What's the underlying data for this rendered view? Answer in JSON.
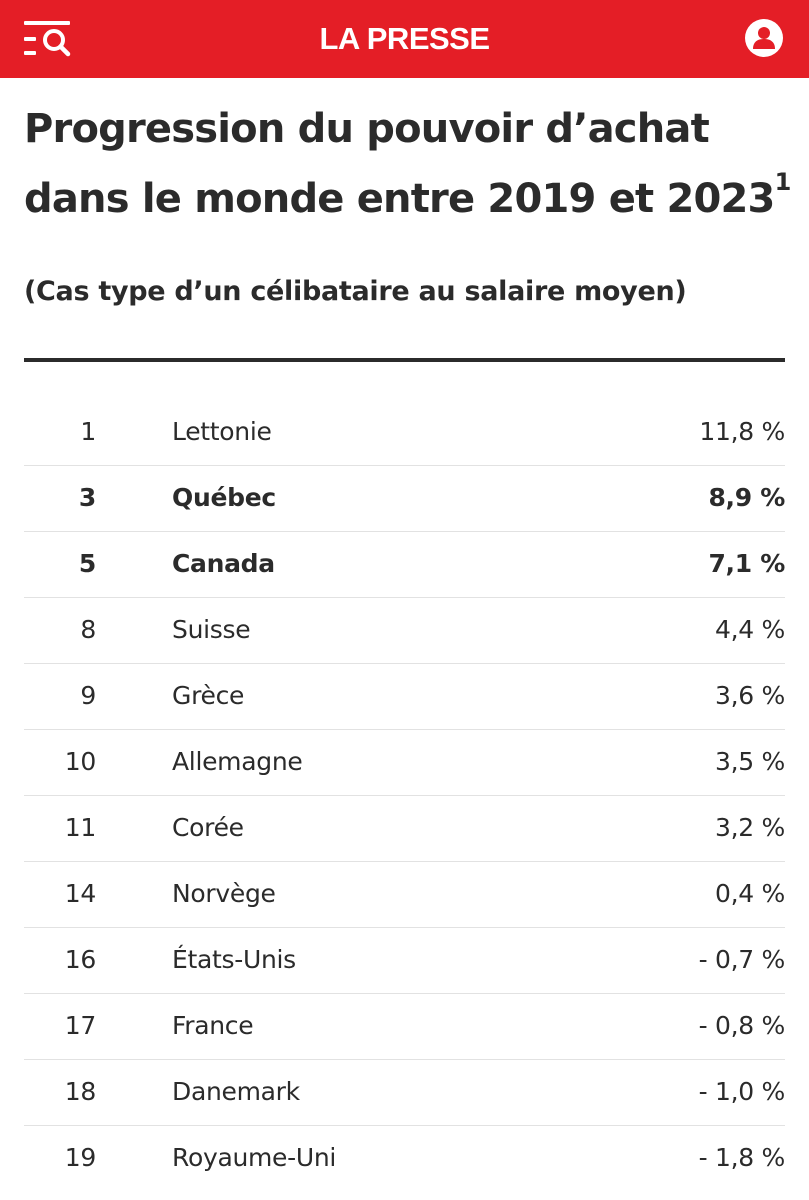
{
  "header": {
    "brand": "LA PRESSE",
    "menu_icon": "menu-search-icon",
    "account_icon": "account-icon",
    "accent_color": "#e41e26"
  },
  "article": {
    "title": "Progression du pouvoir d’achat dans le monde entre 2019 et 2023",
    "title_sup": "1",
    "subtitle": "(Cas type d’un célibataire au salaire moyen)"
  },
  "table": {
    "rows": [
      {
        "rank": "1",
        "country": "Lettonie",
        "value": "11,8 %",
        "highlight": false
      },
      {
        "rank": "3",
        "country": "Québec",
        "value": "8,9 %",
        "highlight": true
      },
      {
        "rank": "5",
        "country": "Canada",
        "value": "7,1 %",
        "highlight": true
      },
      {
        "rank": "8",
        "country": "Suisse",
        "value": "4,4 %",
        "highlight": false
      },
      {
        "rank": "9",
        "country": "Grèce",
        "value": "3,6 %",
        "highlight": false
      },
      {
        "rank": "10",
        "country": "Allemagne",
        "value": "3,5 %",
        "highlight": false
      },
      {
        "rank": "11",
        "country": "Corée",
        "value": "3,2 %",
        "highlight": false
      },
      {
        "rank": "14",
        "country": "Norvège",
        "value": "0,4 %",
        "highlight": false
      },
      {
        "rank": "16",
        "country": "États-Unis",
        "value": "- 0,7 %",
        "highlight": false
      },
      {
        "rank": "17",
        "country": "France",
        "value": "- 0,8 %",
        "highlight": false
      },
      {
        "rank": "18",
        "country": "Danemark",
        "value": "- 1,0 %",
        "highlight": false
      },
      {
        "rank": "19",
        "country": "Royaume-Uni",
        "value": "- 1,8 %",
        "highlight": false
      }
    ]
  }
}
